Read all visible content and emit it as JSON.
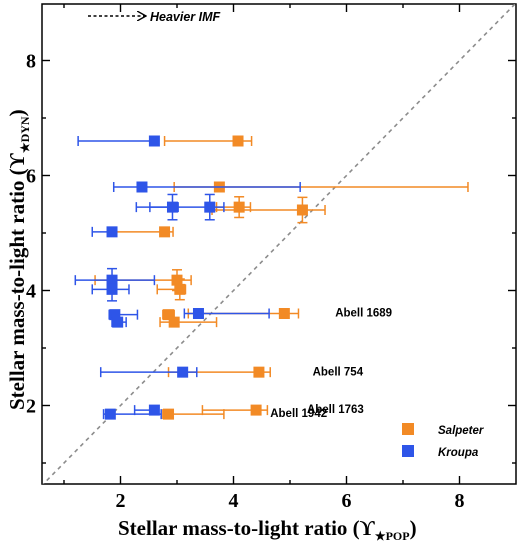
{
  "chart_data": {
    "type": "scatter",
    "xlabel": "Stellar mass-to-light ratio (ϒ",
    "xlabel_sub": "★POP",
    "ylabel": "Stellar mass-to-light ratio (ϒ",
    "ylabel_sub": "★DYN",
    "xlim": [
      0.7,
      9.0
    ],
    "ylim": [
      0.8,
      9.0
    ],
    "xticks": [
      2,
      4,
      6,
      8
    ],
    "yticks": [
      2,
      4,
      6,
      8
    ],
    "grid": false,
    "legend_position": "bottom-right",
    "reference_line": "y = x (one-to-one)",
    "annotation": "Heavier IMF",
    "series": [
      {
        "name": "Salpeter",
        "color": "#F28A25",
        "points": [
          {
            "x": 4.08,
            "y": 6.6,
            "xerr_lo": 1.3,
            "xerr_hi": 0.24,
            "yerr": 0.05
          },
          {
            "x": 3.75,
            "y": 5.8,
            "xerr_lo": 0.8,
            "xerr_hi": 4.4,
            "yerr": 0.06
          },
          {
            "x": 4.1,
            "y": 5.45,
            "xerr_lo": 0.4,
            "xerr_hi": 0.2,
            "yerr": 0.18
          },
          {
            "x": 5.22,
            "y": 5.4,
            "xerr_lo": 1.6,
            "xerr_hi": 0.4,
            "yerr": 0.22
          },
          {
            "x": 2.78,
            "y": 5.02,
            "xerr_lo": 0.9,
            "xerr_hi": 0.15,
            "yerr": 0.05
          },
          {
            "x": 3.0,
            "y": 4.18,
            "xerr_lo": 1.45,
            "xerr_hi": 0.25,
            "yerr": 0.18
          },
          {
            "x": 3.05,
            "y": 4.02,
            "xerr_lo": 0.4,
            "xerr_hi": 0.1,
            "yerr": 0.18
          },
          {
            "x": 4.9,
            "y": 3.6,
            "xerr_lo": 1.7,
            "xerr_hi": 0.25,
            "yerr": 0.05
          },
          {
            "x": 2.85,
            "y": 3.58,
            "xerr_lo": 0.1,
            "xerr_hi": 0.1,
            "yerr": 0.05
          },
          {
            "x": 2.95,
            "y": 3.45,
            "xerr_lo": 0.25,
            "xerr_hi": 0.75,
            "yerr": 0.05
          },
          {
            "x": 4.45,
            "y": 2.58,
            "xerr_lo": 1.6,
            "xerr_hi": 0.2,
            "yerr": 0.05
          },
          {
            "x": 4.4,
            "y": 1.92,
            "xerr_lo": 0.95,
            "xerr_hi": 0.2,
            "yerr": 0.06
          },
          {
            "x": 2.85,
            "y": 1.85,
            "xerr_lo": 0.1,
            "xerr_hi": 0.98,
            "yerr": 0.05
          }
        ]
      },
      {
        "name": "Kroupa",
        "color": "#2E55E8",
        "points": [
          {
            "x": 2.6,
            "y": 6.6,
            "xerr_lo": 1.35,
            "xerr_hi": 0.05,
            "yerr": 0.06
          },
          {
            "x": 2.38,
            "y": 5.8,
            "xerr_lo": 0.5,
            "xerr_hi": 2.8,
            "yerr": 0.06
          },
          {
            "x": 2.92,
            "y": 5.45,
            "xerr_lo": 0.4,
            "xerr_hi": 0.1,
            "yerr": 0.22
          },
          {
            "x": 3.58,
            "y": 5.45,
            "xerr_lo": 1.3,
            "xerr_hi": 0.25,
            "yerr": 0.22
          },
          {
            "x": 1.85,
            "y": 5.02,
            "xerr_lo": 0.35,
            "xerr_hi": 0.05,
            "yerr": 0.05
          },
          {
            "x": 1.85,
            "y": 4.18,
            "xerr_lo": 0.65,
            "xerr_hi": 0.75,
            "yerr": 0.2
          },
          {
            "x": 1.85,
            "y": 4.02,
            "xerr_lo": 0.35,
            "xerr_hi": 0.3,
            "yerr": 0.2
          },
          {
            "x": 3.38,
            "y": 3.6,
            "xerr_lo": 0.25,
            "xerr_hi": 1.25,
            "yerr": 0.05
          },
          {
            "x": 1.9,
            "y": 3.58,
            "xerr_lo": 0.1,
            "xerr_hi": 0.4,
            "yerr": 0.05
          },
          {
            "x": 1.95,
            "y": 3.45,
            "xerr_lo": 0.1,
            "xerr_hi": 0.15,
            "yerr": 0.05
          },
          {
            "x": 3.1,
            "y": 2.58,
            "xerr_lo": 1.45,
            "xerr_hi": 0.25,
            "yerr": 0.05
          },
          {
            "x": 2.6,
            "y": 1.92,
            "xerr_lo": 0.35,
            "xerr_hi": 0.05,
            "yerr": 0.06
          },
          {
            "x": 1.82,
            "y": 1.85,
            "xerr_lo": 0.12,
            "xerr_hi": 0.9,
            "yerr": 0.05
          }
        ]
      }
    ],
    "annotations": [
      {
        "text": "Abell 1689",
        "x": 5.8,
        "y": 3.55
      },
      {
        "text": "Abell 754",
        "x": 5.4,
        "y": 2.52
      },
      {
        "text": "Abell 1763",
        "x": 5.3,
        "y": 1.87
      },
      {
        "text": "Abell 1942",
        "x": 4.65,
        "y": 1.8
      }
    ]
  }
}
